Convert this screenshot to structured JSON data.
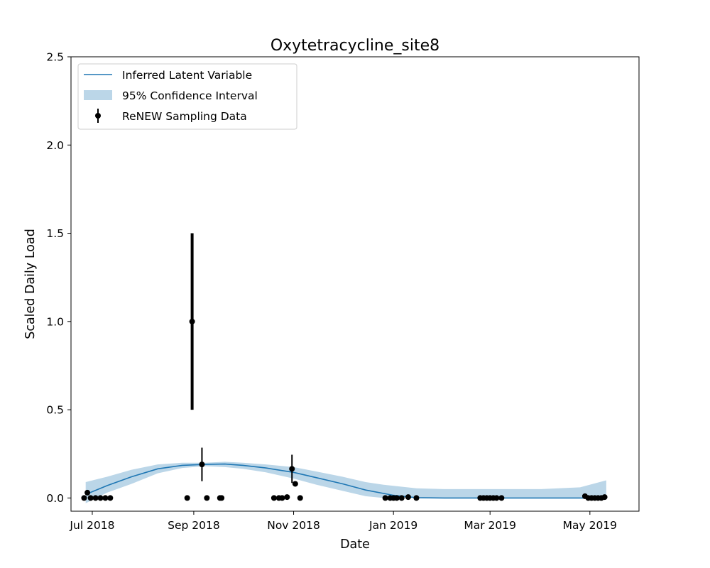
{
  "chart_data": {
    "type": "line",
    "title": "Oxytetracycline_site8",
    "xlabel": "Date",
    "ylabel": "Scaled Daily Load",
    "x_type": "date",
    "xlim": [
      "2018-06-18",
      "2019-05-31"
    ],
    "ylim": [
      -0.075,
      2.5
    ],
    "x_ticks": [
      {
        "date": "2018-07-01",
        "label": "Jul 2018"
      },
      {
        "date": "2018-09-01",
        "label": "Sep 2018"
      },
      {
        "date": "2018-11-01",
        "label": "Nov 2018"
      },
      {
        "date": "2019-01-01",
        "label": "Jan 2019"
      },
      {
        "date": "2019-03-01",
        "label": "Mar 2019"
      },
      {
        "date": "2019-05-01",
        "label": "May 2019"
      }
    ],
    "y_ticks": [
      {
        "value": 0.0,
        "label": "0.0"
      },
      {
        "value": 0.5,
        "label": "0.5"
      },
      {
        "value": 1.0,
        "label": "1.0"
      },
      {
        "value": 1.5,
        "label": "1.5"
      },
      {
        "value": 2.0,
        "label": "2.0"
      },
      {
        "value": 2.5,
        "label": "2.5"
      }
    ],
    "grid": false,
    "legend_position": "top-left",
    "series": [
      {
        "name": "Inferred Latent Variable",
        "kind": "line",
        "color": "#1f77b4",
        "points": [
          {
            "x": "2018-06-27",
            "y": 0.02
          },
          {
            "x": "2018-07-10",
            "y": 0.07
          },
          {
            "x": "2018-07-25",
            "y": 0.12
          },
          {
            "x": "2018-08-10",
            "y": 0.165
          },
          {
            "x": "2018-08-25",
            "y": 0.185
          },
          {
            "x": "2018-09-08",
            "y": 0.19
          },
          {
            "x": "2018-09-20",
            "y": 0.192
          },
          {
            "x": "2018-10-01",
            "y": 0.185
          },
          {
            "x": "2018-10-15",
            "y": 0.17
          },
          {
            "x": "2018-11-01",
            "y": 0.145
          },
          {
            "x": "2018-11-15",
            "y": 0.115
          },
          {
            "x": "2018-12-01",
            "y": 0.08
          },
          {
            "x": "2018-12-15",
            "y": 0.045
          },
          {
            "x": "2019-01-01",
            "y": 0.015
          },
          {
            "x": "2019-01-15",
            "y": 0.002
          },
          {
            "x": "2019-02-01",
            "y": 0.0
          },
          {
            "x": "2019-03-01",
            "y": 0.0
          },
          {
            "x": "2019-04-01",
            "y": 0.0
          },
          {
            "x": "2019-05-11",
            "y": 0.0
          }
        ]
      },
      {
        "name": "95% Confidence Interval",
        "kind": "band",
        "color": "#1f77b4",
        "opacity": 0.3,
        "points": [
          {
            "x": "2018-06-27",
            "lo": -0.03,
            "hi": 0.09
          },
          {
            "x": "2018-07-10",
            "lo": 0.03,
            "hi": 0.12
          },
          {
            "x": "2018-07-25",
            "lo": 0.08,
            "hi": 0.16
          },
          {
            "x": "2018-08-10",
            "lo": 0.14,
            "hi": 0.19
          },
          {
            "x": "2018-08-25",
            "lo": 0.17,
            "hi": 0.2
          },
          {
            "x": "2018-09-08",
            "lo": 0.18,
            "hi": 0.2
          },
          {
            "x": "2018-09-20",
            "lo": 0.175,
            "hi": 0.205
          },
          {
            "x": "2018-10-01",
            "lo": 0.165,
            "hi": 0.2
          },
          {
            "x": "2018-10-15",
            "lo": 0.145,
            "hi": 0.19
          },
          {
            "x": "2018-11-01",
            "lo": 0.11,
            "hi": 0.175
          },
          {
            "x": "2018-11-15",
            "lo": 0.075,
            "hi": 0.15
          },
          {
            "x": "2018-12-01",
            "lo": 0.04,
            "hi": 0.12
          },
          {
            "x": "2018-12-15",
            "lo": 0.01,
            "hi": 0.09
          },
          {
            "x": "2018-12-26",
            "lo": 0.0,
            "hi": 0.075
          },
          {
            "x": "2019-01-15",
            "lo": 0.0,
            "hi": 0.055
          },
          {
            "x": "2019-02-01",
            "lo": 0.0,
            "hi": 0.05
          },
          {
            "x": "2019-03-01",
            "lo": 0.0,
            "hi": 0.05
          },
          {
            "x": "2019-04-01",
            "lo": 0.0,
            "hi": 0.05
          },
          {
            "x": "2019-04-25",
            "lo": 0.0,
            "hi": 0.06
          },
          {
            "x": "2019-05-11",
            "lo": 0.0,
            "hi": 0.1
          }
        ]
      },
      {
        "name": "ReNEW Sampling Data",
        "kind": "errorbar",
        "color": "#000000",
        "points": [
          {
            "x": "2018-06-26",
            "y": 0.0
          },
          {
            "x": "2018-06-28",
            "y": 0.03
          },
          {
            "x": "2018-06-30",
            "y": 0.0
          },
          {
            "x": "2018-07-03",
            "y": 0.0
          },
          {
            "x": "2018-07-06",
            "y": 0.0
          },
          {
            "x": "2018-07-09",
            "y": 0.0
          },
          {
            "x": "2018-07-12",
            "y": 0.0
          },
          {
            "x": "2018-08-28",
            "y": 0.0
          },
          {
            "x": "2018-08-31",
            "y": 1.0,
            "err": 0.5,
            "thick": true
          },
          {
            "x": "2018-09-06",
            "y": 0.19,
            "err": 0.095
          },
          {
            "x": "2018-09-09",
            "y": 0.0
          },
          {
            "x": "2018-09-17",
            "y": 0.0
          },
          {
            "x": "2018-09-18",
            "y": 0.0
          },
          {
            "x": "2018-10-20",
            "y": 0.0
          },
          {
            "x": "2018-10-23",
            "y": 0.0
          },
          {
            "x": "2018-10-25",
            "y": 0.0
          },
          {
            "x": "2018-10-28",
            "y": 0.005
          },
          {
            "x": "2018-10-31",
            "y": 0.165,
            "err": 0.08
          },
          {
            "x": "2018-11-02",
            "y": 0.08
          },
          {
            "x": "2018-11-05",
            "y": 0.0
          },
          {
            "x": "2018-12-27",
            "y": 0.0
          },
          {
            "x": "2018-12-30",
            "y": 0.0
          },
          {
            "x": "2019-01-01",
            "y": 0.0
          },
          {
            "x": "2019-01-03",
            "y": 0.0
          },
          {
            "x": "2019-01-06",
            "y": 0.0
          },
          {
            "x": "2019-01-10",
            "y": 0.005
          },
          {
            "x": "2019-01-15",
            "y": 0.0
          },
          {
            "x": "2019-02-23",
            "y": 0.0
          },
          {
            "x": "2019-02-25",
            "y": 0.0
          },
          {
            "x": "2019-02-27",
            "y": 0.0
          },
          {
            "x": "2019-03-01",
            "y": 0.0
          },
          {
            "x": "2019-03-03",
            "y": 0.0
          },
          {
            "x": "2019-03-05",
            "y": 0.0
          },
          {
            "x": "2019-03-08",
            "y": 0.0
          },
          {
            "x": "2019-04-28",
            "y": 0.01
          },
          {
            "x": "2019-04-30",
            "y": 0.0
          },
          {
            "x": "2019-05-02",
            "y": 0.0
          },
          {
            "x": "2019-05-04",
            "y": 0.0
          },
          {
            "x": "2019-05-06",
            "y": 0.0
          },
          {
            "x": "2019-05-08",
            "y": 0.0
          },
          {
            "x": "2019-05-10",
            "y": 0.005
          }
        ]
      }
    ]
  }
}
